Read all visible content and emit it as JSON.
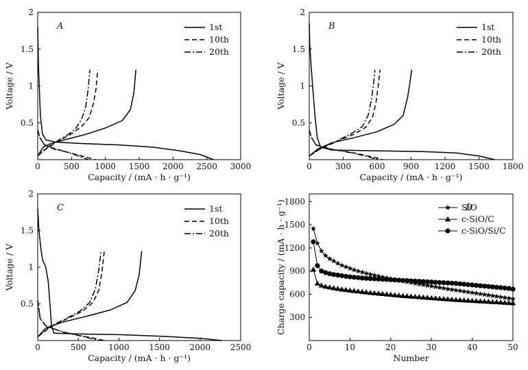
{
  "chart_data": [
    {
      "type": "line",
      "panel": "A",
      "xlabel": "Capacity / (mA · h · g⁻¹)",
      "ylabel": "Voltage / V",
      "xlim": [
        0,
        3000
      ],
      "ylim": [
        0,
        2.0
      ],
      "xticks": [
        0,
        500,
        1000,
        1500,
        2000,
        2500,
        3000
      ],
      "yticks": [
        0.5,
        1.0,
        1.5,
        2.0
      ],
      "legend": "top-right",
      "series": [
        {
          "name": "1st",
          "style": "solid",
          "discharge": [
            [
              0,
              1.8
            ],
            [
              10,
              1.3
            ],
            [
              20,
              1.05
            ],
            [
              40,
              0.6
            ],
            [
              70,
              0.35
            ],
            [
              120,
              0.27
            ],
            [
              250,
              0.24
            ],
            [
              600,
              0.22
            ],
            [
              1200,
              0.2
            ],
            [
              1700,
              0.17
            ],
            [
              2100,
              0.12
            ],
            [
              2400,
              0.07
            ],
            [
              2600,
              0.0
            ]
          ],
          "charge": [
            [
              0,
              0.05
            ],
            [
              80,
              0.17
            ],
            [
              200,
              0.22
            ],
            [
              400,
              0.27
            ],
            [
              700,
              0.34
            ],
            [
              1000,
              0.43
            ],
            [
              1250,
              0.53
            ],
            [
              1370,
              0.68
            ],
            [
              1420,
              0.9
            ],
            [
              1440,
              1.1
            ],
            [
              1450,
              1.22
            ]
          ]
        },
        {
          "name": "10th",
          "style": "dashed",
          "discharge": [
            [
              0,
              0.4
            ],
            [
              30,
              0.3
            ],
            [
              100,
              0.2
            ],
            [
              250,
              0.15
            ],
            [
              450,
              0.1
            ],
            [
              650,
              0.05
            ],
            [
              850,
              0.0
            ]
          ],
          "charge": [
            [
              0,
              0.05
            ],
            [
              100,
              0.13
            ],
            [
              300,
              0.25
            ],
            [
              500,
              0.35
            ],
            [
              650,
              0.45
            ],
            [
              760,
              0.57
            ],
            [
              820,
              0.75
            ],
            [
              860,
              0.95
            ],
            [
              880,
              1.15
            ],
            [
              890,
              1.22
            ]
          ]
        },
        {
          "name": "20th",
          "style": "dashdot",
          "discharge": [
            [
              0,
              0.4
            ],
            [
              30,
              0.3
            ],
            [
              100,
              0.2
            ],
            [
              250,
              0.14
            ],
            [
              450,
              0.1
            ],
            [
              600,
              0.05
            ],
            [
              750,
              0.0
            ]
          ],
          "charge": [
            [
              0,
              0.05
            ],
            [
              100,
              0.14
            ],
            [
              300,
              0.26
            ],
            [
              450,
              0.34
            ],
            [
              560,
              0.42
            ],
            [
              650,
              0.55
            ],
            [
              710,
              0.72
            ],
            [
              740,
              0.92
            ],
            [
              760,
              1.1
            ],
            [
              770,
              1.22
            ]
          ]
        }
      ]
    },
    {
      "type": "line",
      "panel": "B",
      "xlabel": "Capacity / (mA · h · g⁻¹)",
      "ylabel": "Voltage / V",
      "xlim": [
        0,
        1800
      ],
      "ylim": [
        0,
        2.0
      ],
      "xticks": [
        0,
        300,
        600,
        900,
        1200,
        1500,
        1800
      ],
      "yticks": [
        0.5,
        1.0,
        1.5,
        2.0
      ],
      "legend": "top-right",
      "series": [
        {
          "name": "1st",
          "style": "solid",
          "discharge": [
            [
              0,
              1.85
            ],
            [
              5,
              1.55
            ],
            [
              15,
              1.3
            ],
            [
              30,
              1.0
            ],
            [
              50,
              0.6
            ],
            [
              70,
              0.3
            ],
            [
              100,
              0.17
            ],
            [
              200,
              0.13
            ],
            [
              600,
              0.12
            ],
            [
              1000,
              0.11
            ],
            [
              1300,
              0.09
            ],
            [
              1500,
              0.05
            ],
            [
              1640,
              0.0
            ]
          ],
          "charge": [
            [
              0,
              0.05
            ],
            [
              80,
              0.15
            ],
            [
              200,
              0.23
            ],
            [
              400,
              0.3
            ],
            [
              600,
              0.38
            ],
            [
              750,
              0.48
            ],
            [
              830,
              0.6
            ],
            [
              870,
              0.85
            ],
            [
              890,
              1.05
            ],
            [
              905,
              1.22
            ]
          ]
        },
        {
          "name": "10th",
          "style": "dashed",
          "discharge": [
            [
              0,
              0.4
            ],
            [
              20,
              0.3
            ],
            [
              60,
              0.2
            ],
            [
              200,
              0.14
            ],
            [
              400,
              0.09
            ],
            [
              550,
              0.04
            ],
            [
              650,
              0.0
            ]
          ],
          "charge": [
            [
              0,
              0.05
            ],
            [
              100,
              0.15
            ],
            [
              250,
              0.25
            ],
            [
              400,
              0.35
            ],
            [
              500,
              0.44
            ],
            [
              560,
              0.58
            ],
            [
              590,
              0.78
            ],
            [
              610,
              1.0
            ],
            [
              625,
              1.22
            ]
          ]
        },
        {
          "name": "20th",
          "style": "dashdot",
          "discharge": [
            [
              0,
              0.4
            ],
            [
              20,
              0.3
            ],
            [
              60,
              0.2
            ],
            [
              200,
              0.14
            ],
            [
              380,
              0.09
            ],
            [
              520,
              0.04
            ],
            [
              600,
              0.0
            ]
          ],
          "charge": [
            [
              0,
              0.05
            ],
            [
              100,
              0.15
            ],
            [
              250,
              0.26
            ],
            [
              380,
              0.36
            ],
            [
              470,
              0.45
            ],
            [
              520,
              0.6
            ],
            [
              550,
              0.82
            ],
            [
              570,
              1.05
            ],
            [
              580,
              1.22
            ]
          ]
        }
      ]
    },
    {
      "type": "line",
      "panel": "C",
      "xlabel": "Capacity / (mA · h · g⁻¹)",
      "ylabel": "Voltage / V",
      "xlim": [
        0,
        2500
      ],
      "ylim": [
        0,
        2.0
      ],
      "xticks": [
        0,
        500,
        1000,
        1500,
        2000,
        2500
      ],
      "yticks": [
        0.5,
        1.0,
        1.5,
        2.0
      ],
      "legend": "top-right",
      "series": [
        {
          "name": "1st",
          "style": "solid",
          "discharge": [
            [
              0,
              1.8
            ],
            [
              15,
              1.5
            ],
            [
              40,
              1.25
            ],
            [
              60,
              1.1
            ],
            [
              100,
              1.0
            ],
            [
              130,
              0.8
            ],
            [
              150,
              0.5
            ],
            [
              170,
              0.2
            ],
            [
              200,
              0.1
            ],
            [
              500,
              0.09
            ],
            [
              1000,
              0.08
            ],
            [
              1500,
              0.06
            ],
            [
              2000,
              0.03
            ],
            [
              2270,
              0.0
            ]
          ],
          "charge": [
            [
              0,
              0.05
            ],
            [
              100,
              0.17
            ],
            [
              300,
              0.25
            ],
            [
              600,
              0.33
            ],
            [
              900,
              0.42
            ],
            [
              1100,
              0.52
            ],
            [
              1200,
              0.68
            ],
            [
              1250,
              0.9
            ],
            [
              1280,
              1.22
            ]
          ]
        },
        {
          "name": "10th",
          "style": "dashed",
          "discharge": [
            [
              0,
              0.55
            ],
            [
              30,
              0.3
            ],
            [
              100,
              0.2
            ],
            [
              300,
              0.12
            ],
            [
              500,
              0.07
            ],
            [
              700,
              0.03
            ],
            [
              820,
              0.0
            ]
          ],
          "charge": [
            [
              0,
              0.05
            ],
            [
              150,
              0.18
            ],
            [
              350,
              0.29
            ],
            [
              550,
              0.4
            ],
            [
              680,
              0.52
            ],
            [
              750,
              0.68
            ],
            [
              790,
              0.92
            ],
            [
              810,
              1.12
            ],
            [
              820,
              1.22
            ]
          ]
        },
        {
          "name": "20th",
          "style": "dashdot",
          "discharge": [
            [
              0,
              0.55
            ],
            [
              30,
              0.3
            ],
            [
              100,
              0.2
            ],
            [
              300,
              0.12
            ],
            [
              500,
              0.07
            ],
            [
              650,
              0.03
            ],
            [
              760,
              0.0
            ]
          ],
          "charge": [
            [
              0,
              0.05
            ],
            [
              150,
              0.19
            ],
            [
              350,
              0.3
            ],
            [
              520,
              0.4
            ],
            [
              640,
              0.52
            ],
            [
              710,
              0.7
            ],
            [
              750,
              0.95
            ],
            [
              780,
              1.22
            ]
          ]
        }
      ]
    },
    {
      "type": "line",
      "panel": "D",
      "xlabel": "Number",
      "ylabel": "Charge capacity / (mA · h · g⁻¹)",
      "xlim": [
        0,
        50
      ],
      "ylim": [
        0,
        1900
      ],
      "xticks": [
        0,
        10,
        20,
        30,
        40,
        50
      ],
      "yticks": [
        300,
        600,
        900,
        1200,
        1500,
        1800
      ],
      "legend": "top-right",
      "series": [
        {
          "name": "SiO",
          "marker": "star",
          "x": [
            1,
            2,
            3,
            4,
            5,
            6,
            7,
            8,
            9,
            10,
            11,
            12,
            13,
            14,
            15,
            16,
            17,
            18,
            19,
            20,
            21,
            22,
            23,
            24,
            25,
            26,
            27,
            28,
            29,
            30,
            31,
            32,
            33,
            34,
            35,
            36,
            37,
            38,
            39,
            40,
            41,
            42,
            43,
            44,
            45,
            46,
            47,
            48,
            49,
            50
          ],
          "values": [
            1450,
            1260,
            1160,
            1100,
            1060,
            1030,
            1000,
            975,
            955,
            935,
            915,
            900,
            885,
            870,
            858,
            846,
            834,
            822,
            811,
            800,
            790,
            780,
            770,
            760,
            750,
            740,
            731,
            722,
            713,
            704,
            695,
            686,
            677,
            668,
            660,
            652,
            644,
            636,
            628,
            620,
            612,
            604,
            596,
            588,
            580,
            572,
            564,
            556,
            548,
            540
          ]
        },
        {
          "name": "c-SiO/C",
          "marker": "triangle",
          "x": [
            1,
            2,
            3,
            4,
            5,
            6,
            7,
            8,
            9,
            10,
            11,
            12,
            13,
            14,
            15,
            16,
            17,
            18,
            19,
            20,
            21,
            22,
            23,
            24,
            25,
            26,
            27,
            28,
            29,
            30,
            31,
            32,
            33,
            34,
            35,
            36,
            37,
            38,
            39,
            40,
            41,
            42,
            43,
            44,
            45,
            46,
            47,
            48,
            49,
            50
          ],
          "values": [
            920,
            740,
            715,
            700,
            690,
            680,
            672,
            664,
            657,
            650,
            644,
            638,
            632,
            626,
            620,
            615,
            610,
            605,
            600,
            595,
            590,
            585,
            580,
            576,
            572,
            568,
            564,
            560,
            556,
            552,
            548,
            544,
            540,
            536,
            532,
            528,
            525,
            522,
            519,
            516,
            513,
            510,
            507,
            504,
            501,
            498,
            495,
            492,
            488,
            485
          ]
        },
        {
          "name": "c-SiO/Si/C",
          "marker": "circle",
          "x": [
            1,
            2,
            3,
            4,
            5,
            6,
            7,
            8,
            9,
            10,
            11,
            12,
            13,
            14,
            15,
            16,
            17,
            18,
            19,
            20,
            21,
            22,
            23,
            24,
            25,
            26,
            27,
            28,
            29,
            30,
            31,
            32,
            33,
            34,
            35,
            36,
            37,
            38,
            39,
            40,
            41,
            42,
            43,
            44,
            45,
            46,
            47,
            48,
            49,
            50
          ],
          "values": [
            1280,
            970,
            900,
            880,
            865,
            855,
            848,
            840,
            832,
            825,
            820,
            815,
            810,
            806,
            803,
            800,
            797,
            794,
            791,
            788,
            785,
            782,
            779,
            776,
            773,
            770,
            767,
            764,
            761,
            758,
            755,
            752,
            749,
            746,
            743,
            740,
            735,
            730,
            725,
            720,
            715,
            710,
            705,
            700,
            695,
            690,
            685,
            680,
            675,
            665
          ]
        }
      ]
    }
  ]
}
